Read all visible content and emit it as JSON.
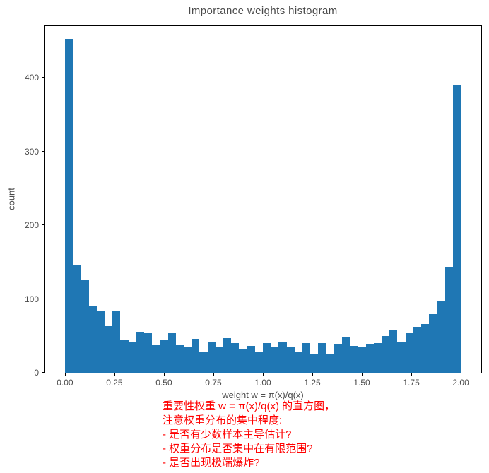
{
  "chart_data": {
    "type": "bar",
    "subtype": "histogram",
    "title": "Importance weights histogram",
    "xlabel": "weight w = π(x)/q(x)",
    "ylabel": "count",
    "bin_range": [
      0,
      2
    ],
    "bin_count": 50,
    "values": [
      453,
      146,
      125,
      90,
      83,
      63,
      83,
      45,
      41,
      56,
      54,
      37,
      45,
      54,
      38,
      34,
      46,
      29,
      42,
      35,
      47,
      40,
      32,
      36,
      29,
      40,
      34,
      41,
      35,
      29,
      40,
      25,
      40,
      26,
      39,
      49,
      36,
      35,
      39,
      40,
      50,
      57,
      42,
      55,
      62,
      66,
      79,
      98,
      144,
      390
    ],
    "xticks": [
      "0.00",
      "0.25",
      "0.50",
      "0.75",
      "1.00",
      "1.25",
      "1.50",
      "1.75",
      "2.00"
    ],
    "yticks": [
      "0",
      "100",
      "200",
      "300",
      "400"
    ],
    "ylim": [
      0,
      470
    ],
    "bar_color": "#1f77b4",
    "grid": false,
    "legend_position": "none"
  },
  "annotation": {
    "color": "#ff0000",
    "lines": [
      "重要性权重 w = π(x)/q(x) 的直方图，",
      "注意权重分布的集中程度:",
      "- 是否有少数样本主导估计?",
      "- 权重分布是否集中在有限范围?",
      "- 是否出现极端爆炸?"
    ]
  }
}
